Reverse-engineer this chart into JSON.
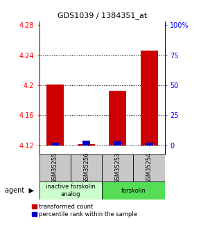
{
  "title": "GDS1039 / 1384351_at",
  "samples": [
    "GSM35255",
    "GSM35256",
    "GSM35253",
    "GSM35254"
  ],
  "red_values": [
    4.201,
    4.121,
    4.193,
    4.246
  ],
  "blue_values": [
    4.1235,
    4.1265,
    4.1255,
    4.1235
  ],
  "ymin": 4.108,
  "ymax": 4.285,
  "yticks": [
    4.12,
    4.16,
    4.2,
    4.24,
    4.28
  ],
  "ytick_labels": [
    "4.12",
    "4.16",
    "4.2",
    "4.24",
    "4.28"
  ],
  "right_yticks_vals": [
    4.12,
    4.16,
    4.2,
    4.24,
    4.28
  ],
  "right_ytick_labels": [
    "0",
    "25",
    "50",
    "75",
    "100%"
  ],
  "groups": [
    {
      "label": "inactive forskolin\nanalog",
      "color": "#ccffcc",
      "samples": [
        0,
        1
      ]
    },
    {
      "label": "forskolin",
      "color": "#55dd55",
      "samples": [
        2,
        3
      ]
    }
  ],
  "bar_width": 0.55,
  "blue_bar_width": 0.25,
  "red_color": "#cc0000",
  "blue_color": "#0000cc",
  "baseline": 4.12,
  "legend_red": "transformed count",
  "legend_blue": "percentile rank within the sample",
  "background_color": "#ffffff",
  "label_box_color": "#c8c8c8",
  "title_fontsize": 8,
  "tick_fontsize": 7,
  "label_fontsize": 6,
  "group_fontsize": 6
}
